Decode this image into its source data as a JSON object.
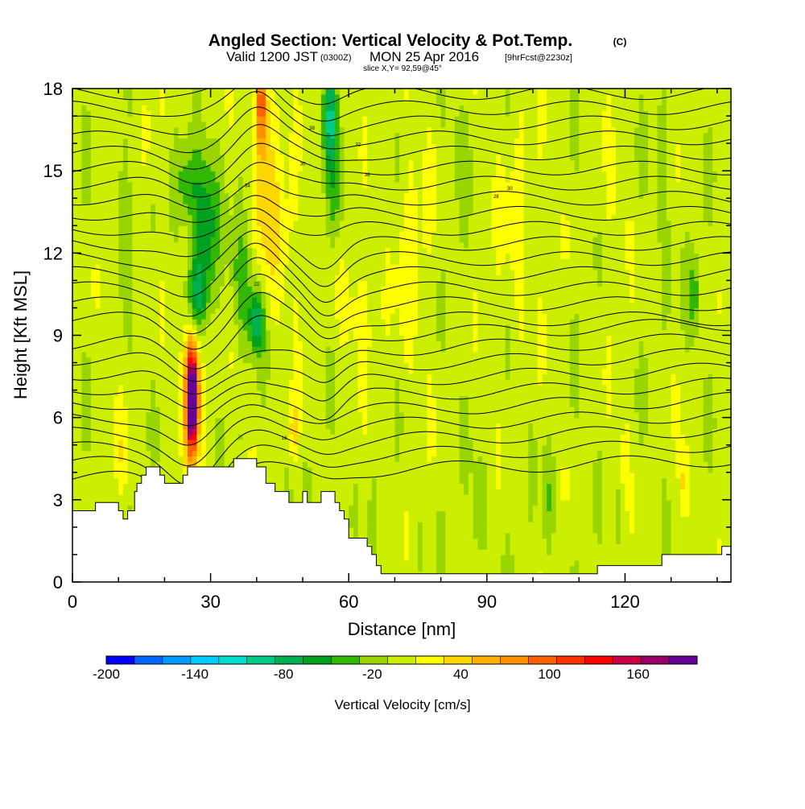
{
  "chart_data": {
    "type": "heatmap",
    "title": "Angled Section: Vertical Velocity & Pot.Temp.",
    "title_unit": "(C)",
    "subtitle": {
      "valid": "Valid 1200 JST",
      "utc": "(0300Z)",
      "date": "MON 25 Apr 2016",
      "forecast": "[9hrFcst@2230z]"
    },
    "slice_label": "slice X,Y= 92,59@45°",
    "xlabel": "Distance [nm]",
    "ylabel": "Height [Kft MSL]",
    "xlim": [
      0,
      143
    ],
    "ylim": [
      0,
      18
    ],
    "x_ticks": [
      0,
      30,
      60,
      90,
      120
    ],
    "y_ticks": [
      0,
      3,
      6,
      9,
      12,
      15,
      18
    ],
    "colorbar": {
      "label": "Vertical Velocity [cm/s]",
      "min": -200,
      "max": 200,
      "step": 20,
      "tick_labels": [
        "-200",
        "-140",
        "-80",
        "-20",
        "40",
        "100",
        "160"
      ],
      "colors": [
        "#0000ff",
        "#0066ff",
        "#0099ff",
        "#00ccff",
        "#00ddcc",
        "#00cc88",
        "#00b050",
        "#00a020",
        "#33b800",
        "#99d600",
        "#ccee00",
        "#ffff00",
        "#ffd700",
        "#ffb000",
        "#ff9000",
        "#ff6000",
        "#ff3000",
        "#ff0000",
        "#cc0044",
        "#990066",
        "#660099"
      ]
    },
    "theta_contour_labels": [
      {
        "x": 46,
        "y": 7.2,
        "label": "16"
      },
      {
        "x": 40,
        "y": 12.8,
        "label": "22"
      },
      {
        "x": 50,
        "y": 17.2,
        "label": "30"
      },
      {
        "x": 38,
        "y": 18.9,
        "label": "34"
      },
      {
        "x": 52,
        "y": 21.0,
        "label": "38"
      },
      {
        "x": 37,
        "y": 22.5,
        "label": "40"
      },
      {
        "x": 62,
        "y": 17.9,
        "label": "32"
      },
      {
        "x": 64,
        "y": 19.3,
        "label": "36"
      },
      {
        "x": 95,
        "y": 16.3,
        "label": "30"
      },
      {
        "x": 92,
        "y": 16.0,
        "label": "28"
      }
    ],
    "terrain_kft": [
      [
        0,
        2.6
      ],
      [
        3,
        2.6
      ],
      [
        5,
        2.9
      ],
      [
        8,
        2.9
      ],
      [
        10,
        2.6
      ],
      [
        11,
        2.3
      ],
      [
        12,
        2.6
      ],
      [
        13,
        2.6
      ],
      [
        13.5,
        3.3
      ],
      [
        14,
        3.6
      ],
      [
        15,
        3.9
      ],
      [
        16,
        4.2
      ],
      [
        18,
        4.2
      ],
      [
        19,
        3.9
      ],
      [
        20,
        3.6
      ],
      [
        23,
        3.6
      ],
      [
        24,
        3.9
      ],
      [
        25,
        4.2
      ],
      [
        33,
        4.2
      ],
      [
        35,
        4.5
      ],
      [
        38,
        4.5
      ],
      [
        40,
        4.2
      ],
      [
        42,
        3.6
      ],
      [
        44,
        3.3
      ],
      [
        46,
        3.3
      ],
      [
        47,
        2.9
      ],
      [
        49,
        2.9
      ],
      [
        50,
        3.3
      ],
      [
        51,
        2.9
      ],
      [
        53,
        2.9
      ],
      [
        54,
        3.3
      ],
      [
        56,
        3.3
      ],
      [
        57,
        2.9
      ],
      [
        58,
        2.6
      ],
      [
        59,
        2.3
      ],
      [
        60,
        1.6
      ],
      [
        63,
        1.6
      ],
      [
        64,
        1.3
      ],
      [
        65,
        1.0
      ],
      [
        66,
        0.6
      ],
      [
        67,
        0.3
      ],
      [
        113,
        0.3
      ],
      [
        114,
        0.6
      ],
      [
        127,
        0.6
      ],
      [
        128,
        1.0
      ],
      [
        140,
        1.0
      ],
      [
        141,
        1.3
      ],
      [
        143,
        1.3
      ]
    ],
    "w_features": [
      {
        "x": 26,
        "y": 6.6,
        "sx": 1.1,
        "sy": 1.7,
        "w": 200
      },
      {
        "x": 26,
        "y": 7.0,
        "sx": 2.0,
        "sy": 2.4,
        "w": 90
      },
      {
        "x": 41,
        "y": 17.5,
        "sx": 1.2,
        "sy": 1.8,
        "w": 110
      },
      {
        "x": 42,
        "y": 14.5,
        "sx": 2.5,
        "sy": 3.5,
        "w": 40
      },
      {
        "x": 46,
        "y": 12.5,
        "sx": 3.5,
        "sy": 3.0,
        "w": 25
      },
      {
        "x": 29,
        "y": 13.0,
        "sx": 2.5,
        "sy": 2.5,
        "w": -70
      },
      {
        "x": 27,
        "y": 10.5,
        "sx": 2.0,
        "sy": 1.3,
        "w": -65
      },
      {
        "x": 25,
        "y": 14.5,
        "sx": 2.5,
        "sy": 1.5,
        "w": -50
      },
      {
        "x": 40,
        "y": 9.5,
        "sx": 1.6,
        "sy": 1.1,
        "w": -85
      },
      {
        "x": 37,
        "y": 11.0,
        "sx": 2.5,
        "sy": 2.0,
        "w": -40
      },
      {
        "x": 56,
        "y": 17.0,
        "sx": 1.5,
        "sy": 1.8,
        "w": -85
      },
      {
        "x": 57,
        "y": 14.0,
        "sx": 2.0,
        "sy": 2.0,
        "w": -35
      },
      {
        "x": 62,
        "y": 10.0,
        "sx": 5.0,
        "sy": 2.0,
        "w": 22
      },
      {
        "x": 74,
        "y": 12.0,
        "sx": 4.0,
        "sy": 5.0,
        "w": 20
      },
      {
        "x": 97,
        "y": 13.0,
        "sx": 5.0,
        "sy": 4.0,
        "w": 18
      },
      {
        "x": 135,
        "y": 10.5,
        "sx": 1.5,
        "sy": 1.5,
        "w": -45
      },
      {
        "x": 133,
        "y": 3.5,
        "sx": 1.2,
        "sy": 1.5,
        "w": 45
      },
      {
        "x": 120,
        "y": 4.5,
        "sx": 1.0,
        "sy": 1.5,
        "w": 30
      },
      {
        "x": 11,
        "y": 4.5,
        "sx": 1.5,
        "sy": 1.5,
        "w": 25
      },
      {
        "x": 48,
        "y": 5.5,
        "sx": 1.2,
        "sy": 1.2,
        "w": 40
      },
      {
        "x": 38,
        "y": 3.8,
        "sx": 1.5,
        "sy": 0.8,
        "w": 30
      },
      {
        "x": 88,
        "y": 2.5,
        "sx": 1.2,
        "sy": 1.5,
        "w": -35
      },
      {
        "x": 103,
        "y": 3.0,
        "sx": 1.0,
        "sy": 1.8,
        "w": -30
      },
      {
        "x": 11,
        "y": 14.0,
        "sx": 1.5,
        "sy": 2.5,
        "w": -30
      },
      {
        "x": 17,
        "y": 16.0,
        "sx": 2.0,
        "sy": 2.0,
        "w": 20
      },
      {
        "x": 84,
        "y": 16.0,
        "sx": 3.0,
        "sy": 2.0,
        "w": -15
      },
      {
        "x": 118,
        "y": 13.0,
        "sx": 3.0,
        "sy": 3.0,
        "w": 15
      },
      {
        "x": 128,
        "y": 15.0,
        "sx": 2.0,
        "sy": 2.5,
        "w": -18
      }
    ]
  }
}
